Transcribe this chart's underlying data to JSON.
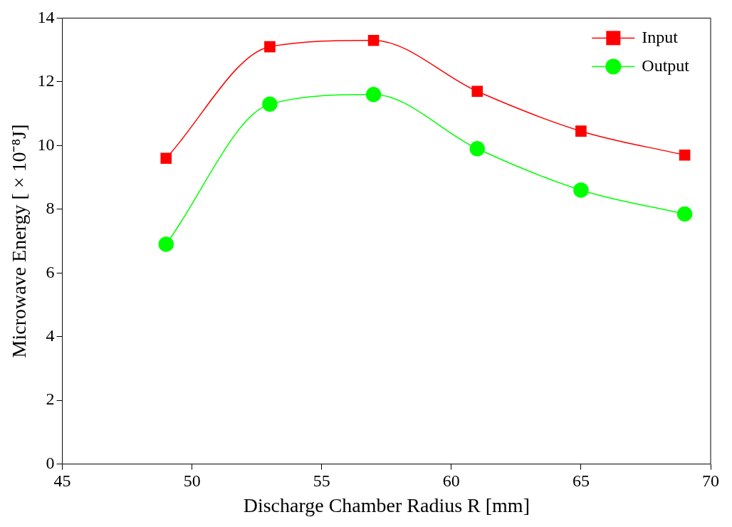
{
  "chart_data": {
    "type": "line",
    "xlabel": "Discharge Chamber Radius R [mm]",
    "ylabel": "Microwave Energy [ × 10⁻⁸J]",
    "x": [
      49,
      53,
      57,
      61,
      65,
      69
    ],
    "series": [
      {
        "name": "Input",
        "color": "#ff0000",
        "values": [
          9.6,
          13.1,
          13.3,
          11.7,
          10.45,
          9.7
        ],
        "marker": "square"
      },
      {
        "name": "Output",
        "color": "#00ff00",
        "values": [
          6.9,
          11.3,
          11.6,
          9.9,
          8.6,
          7.85
        ],
        "marker": "circle"
      }
    ],
    "xlim": [
      45,
      70
    ],
    "xticks": [
      45,
      50,
      55,
      60,
      65,
      70
    ],
    "ylim": [
      0,
      14
    ],
    "yticks": [
      0,
      2,
      4,
      6,
      8,
      10,
      12,
      14
    ],
    "grid": false,
    "legend": "top right"
  }
}
